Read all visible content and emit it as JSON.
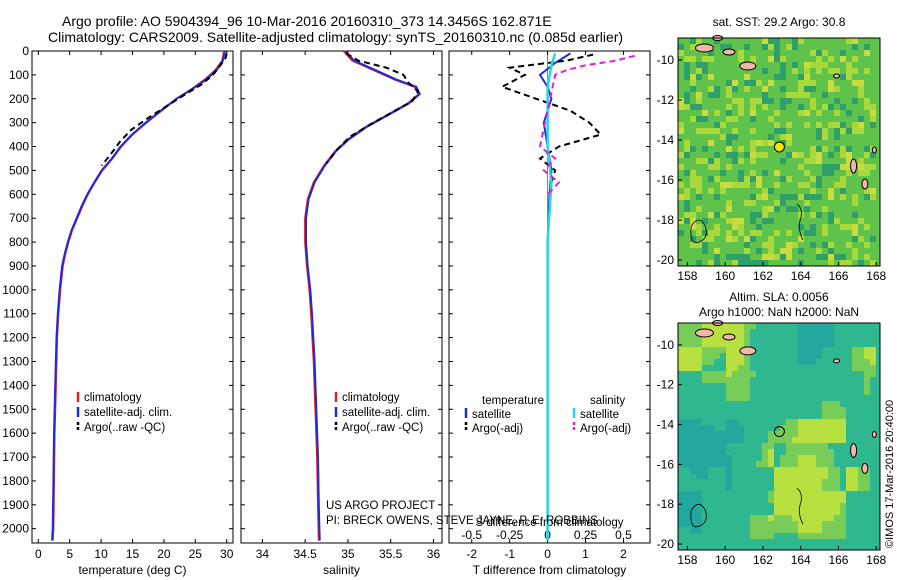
{
  "header": {
    "line1": "Argo profile: AO 5904394_96 10-Mar-2016 20160310_373 14.3456S 162.871E",
    "line2": "Climatology: CARS2009. Satellite-adjusted climatology: synTS_20160310.nc (0.085d earlier)"
  },
  "credits": {
    "project": "US ARGO PROJECT",
    "pi": "PI: BRECK OWENS, STEVE JAYNE, P. E. ROBBINS",
    "stamp": "©IMOS 17-Mar-2016 20:40:00"
  },
  "colors": {
    "climatology": "#e02020",
    "satellite": "#1f2bd8",
    "argo": "#000000",
    "sal_satellite": "#22d8e8",
    "sal_argo": "#e020d8",
    "sst_bg": "#5fc24a",
    "sla_bg": "#2fb890",
    "land": "#f0b8a8"
  },
  "chart_data": [
    {
      "type": "line",
      "panel": "temperature",
      "xlabel": "temperature (deg C)",
      "ylabel": "",
      "xlim": [
        -1,
        31
      ],
      "ylim": [
        2060,
        0
      ],
      "xticks": [
        0,
        5,
        10,
        15,
        20,
        25,
        30
      ],
      "yticks": [
        0,
        100,
        200,
        300,
        400,
        500,
        600,
        700,
        800,
        900,
        1000,
        1100,
        1200,
        1300,
        1400,
        1500,
        1600,
        1700,
        1800,
        1900,
        2000
      ],
      "legend": [
        "climatology",
        "satellite-adj. clim.",
        "Argo(..raw -QC)"
      ],
      "series": [
        {
          "name": "climatology",
          "x": [
            29.6,
            29.3,
            28.2,
            26.5,
            24.4,
            22.0,
            19.6,
            17.2,
            15.0,
            13.2,
            11.8,
            10.2,
            9.0,
            7.9,
            7.0,
            6.2,
            5.4,
            4.8,
            4.3,
            3.9,
            3.5,
            3.2,
            3.0,
            2.8,
            2.6,
            2.5,
            2.4,
            2.3
          ],
          "y": [
            0,
            40,
            80,
            120,
            160,
            200,
            250,
            300,
            350,
            400,
            450,
            500,
            550,
            600,
            650,
            700,
            750,
            800,
            850,
            900,
            1000,
            1100,
            1200,
            1400,
            1600,
            1800,
            2000,
            2050
          ]
        },
        {
          "name": "satellite-adj. clim.",
          "x": [
            29.7,
            29.4,
            28.4,
            26.7,
            24.5,
            22.0,
            19.5,
            17.1,
            14.9,
            13.1,
            11.7,
            10.1,
            8.9,
            7.8,
            6.9,
            6.1,
            5.3,
            4.7,
            4.2,
            3.8,
            3.4,
            3.1,
            2.9,
            2.7,
            2.5,
            2.4,
            2.3,
            2.2
          ],
          "y": [
            0,
            40,
            80,
            120,
            160,
            200,
            250,
            300,
            350,
            400,
            450,
            500,
            550,
            600,
            650,
            700,
            750,
            800,
            850,
            900,
            1000,
            1100,
            1200,
            1400,
            1600,
            1800,
            2000,
            2050
          ]
        },
        {
          "name": "Argo(..raw -QC)",
          "x": [
            30.0,
            29.8,
            29.0,
            27.8,
            26.0,
            23.5,
            20.5,
            17.5,
            14.8,
            13.0,
            11.6,
            10.1
          ],
          "y": [
            10,
            30,
            60,
            100,
            140,
            180,
            230,
            280,
            330,
            380,
            430,
            480
          ]
        }
      ]
    },
    {
      "type": "line",
      "panel": "salinity",
      "xlabel": "salinity",
      "ylabel": "",
      "xlim": [
        33.75,
        36.1
      ],
      "ylim": [
        2060,
        0
      ],
      "xticks": [
        34,
        34.5,
        35,
        35.5,
        36
      ],
      "legend": [
        "climatology",
        "satellite-adj. clim.",
        "Argo(..raw -QC)"
      ],
      "series": [
        {
          "name": "climatology",
          "x": [
            34.95,
            35.05,
            35.3,
            35.55,
            35.78,
            35.83,
            35.7,
            35.45,
            35.2,
            35.0,
            34.85,
            34.72,
            34.6,
            34.53,
            34.5,
            34.5,
            34.52,
            34.55,
            34.57,
            34.6,
            34.62,
            34.64,
            34.65,
            34.66
          ],
          "y": [
            0,
            40,
            80,
            120,
            150,
            180,
            220,
            270,
            320,
            370,
            420,
            480,
            550,
            620,
            700,
            800,
            900,
            1000,
            1100,
            1300,
            1500,
            1700,
            1900,
            2050
          ]
        },
        {
          "name": "satellite-adj. clim.",
          "x": [
            34.97,
            35.07,
            35.32,
            35.57,
            35.8,
            35.84,
            35.71,
            35.46,
            35.21,
            35.01,
            34.86,
            34.73,
            34.61,
            34.54,
            34.51,
            34.51,
            34.53,
            34.56,
            34.58,
            34.61,
            34.63,
            34.65,
            34.66,
            34.67
          ],
          "y": [
            0,
            40,
            80,
            120,
            150,
            180,
            220,
            270,
            320,
            370,
            420,
            480,
            550,
            620,
            700,
            800,
            900,
            1000,
            1100,
            1300,
            1500,
            1700,
            1900,
            2050
          ]
        },
        {
          "name": "Argo(..raw -QC)",
          "x": [
            34.98,
            35.12,
            35.45,
            35.65,
            35.7,
            35.82,
            35.75,
            35.5,
            35.25,
            35.02,
            34.88,
            34.75
          ],
          "y": [
            10,
            40,
            70,
            100,
            130,
            170,
            210,
            260,
            310,
            360,
            410,
            470
          ]
        }
      ]
    },
    {
      "type": "line",
      "panel": "difference",
      "xlabel": "T difference from climatology",
      "x2label": "S difference from climatology",
      "xlim": [
        -2.6,
        2.7
      ],
      "ylim": [
        2060,
        0
      ],
      "xticks": [
        -2,
        -1,
        0,
        1,
        2
      ],
      "x2ticks": [
        "-0.5",
        "-0.25",
        "0",
        "0.25",
        "0.5"
      ],
      "x2tick_positions": [
        -2.0,
        -1.0,
        0.0,
        1.0,
        2.0
      ],
      "legend": [
        "temperature",
        "satellite",
        "Argo(-adj)",
        "salinity",
        "satellite",
        "Argo(-adj)"
      ],
      "series": [
        {
          "name": "temperature satellite",
          "x": [
            0.6,
            0.2,
            -0.2,
            0.0,
            0.1,
            -0.1,
            0.0,
            0.1,
            0.05,
            0.0,
            0.0,
            0.0,
            0.0
          ],
          "y": [
            10,
            50,
            100,
            150,
            200,
            300,
            400,
            500,
            600,
            800,
            1000,
            1500,
            2050
          ]
        },
        {
          "name": "temperature Argo(-adj)",
          "x": [
            1.2,
            0.5,
            -1.0,
            -0.6,
            -1.2,
            -0.3,
            0.6,
            1.1,
            1.4,
            0.3,
            -0.2,
            0.2,
            0.1
          ],
          "y": [
            15,
            40,
            70,
            100,
            150,
            200,
            250,
            300,
            350,
            400,
            450,
            500,
            550
          ]
        },
        {
          "name": "salinity satellite",
          "x": [
            0.2,
            0.1,
            0.0,
            0.0,
            0.0,
            0.1,
            0.0,
            0.0,
            0.0,
            0.0
          ],
          "y": [
            10,
            60,
            150,
            250,
            400,
            550,
            800,
            1200,
            1600,
            2050
          ]
        },
        {
          "name": "salinity Argo(-adj)",
          "x": [
            2.3,
            1.8,
            1.0,
            0.5,
            0.2,
            -0.2,
            0.2,
            -0.1,
            0.3,
            0.0
          ],
          "y": [
            20,
            40,
            60,
            80,
            100,
            400,
            450,
            500,
            550,
            600
          ]
        }
      ]
    },
    {
      "type": "heatmap",
      "panel": "sat. SST map",
      "title": "sat. SST: 29.2 Argo: 30.8",
      "xticks": [
        158,
        160,
        162,
        164,
        166,
        168
      ],
      "yticks": [
        -10,
        -12,
        -14,
        -16,
        -18,
        -20
      ],
      "xlim": [
        157.5,
        168.2
      ],
      "ylim": [
        -20.3,
        -8.9
      ],
      "marker": {
        "lon": 162.87,
        "lat": -14.35
      }
    },
    {
      "type": "heatmap",
      "panel": "SLA map",
      "title": "Altim. SLA: 0.0056",
      "subtitle": "Argo h1000: NaN h2000: NaN",
      "xticks": [
        158,
        160,
        162,
        164,
        166,
        168
      ],
      "yticks": [
        -10,
        -12,
        -14,
        -16,
        -18,
        -20
      ],
      "xlim": [
        157.5,
        168.2
      ],
      "ylim": [
        -20.3,
        -8.9
      ],
      "marker": {
        "lon": 162.87,
        "lat": -14.35
      }
    }
  ]
}
